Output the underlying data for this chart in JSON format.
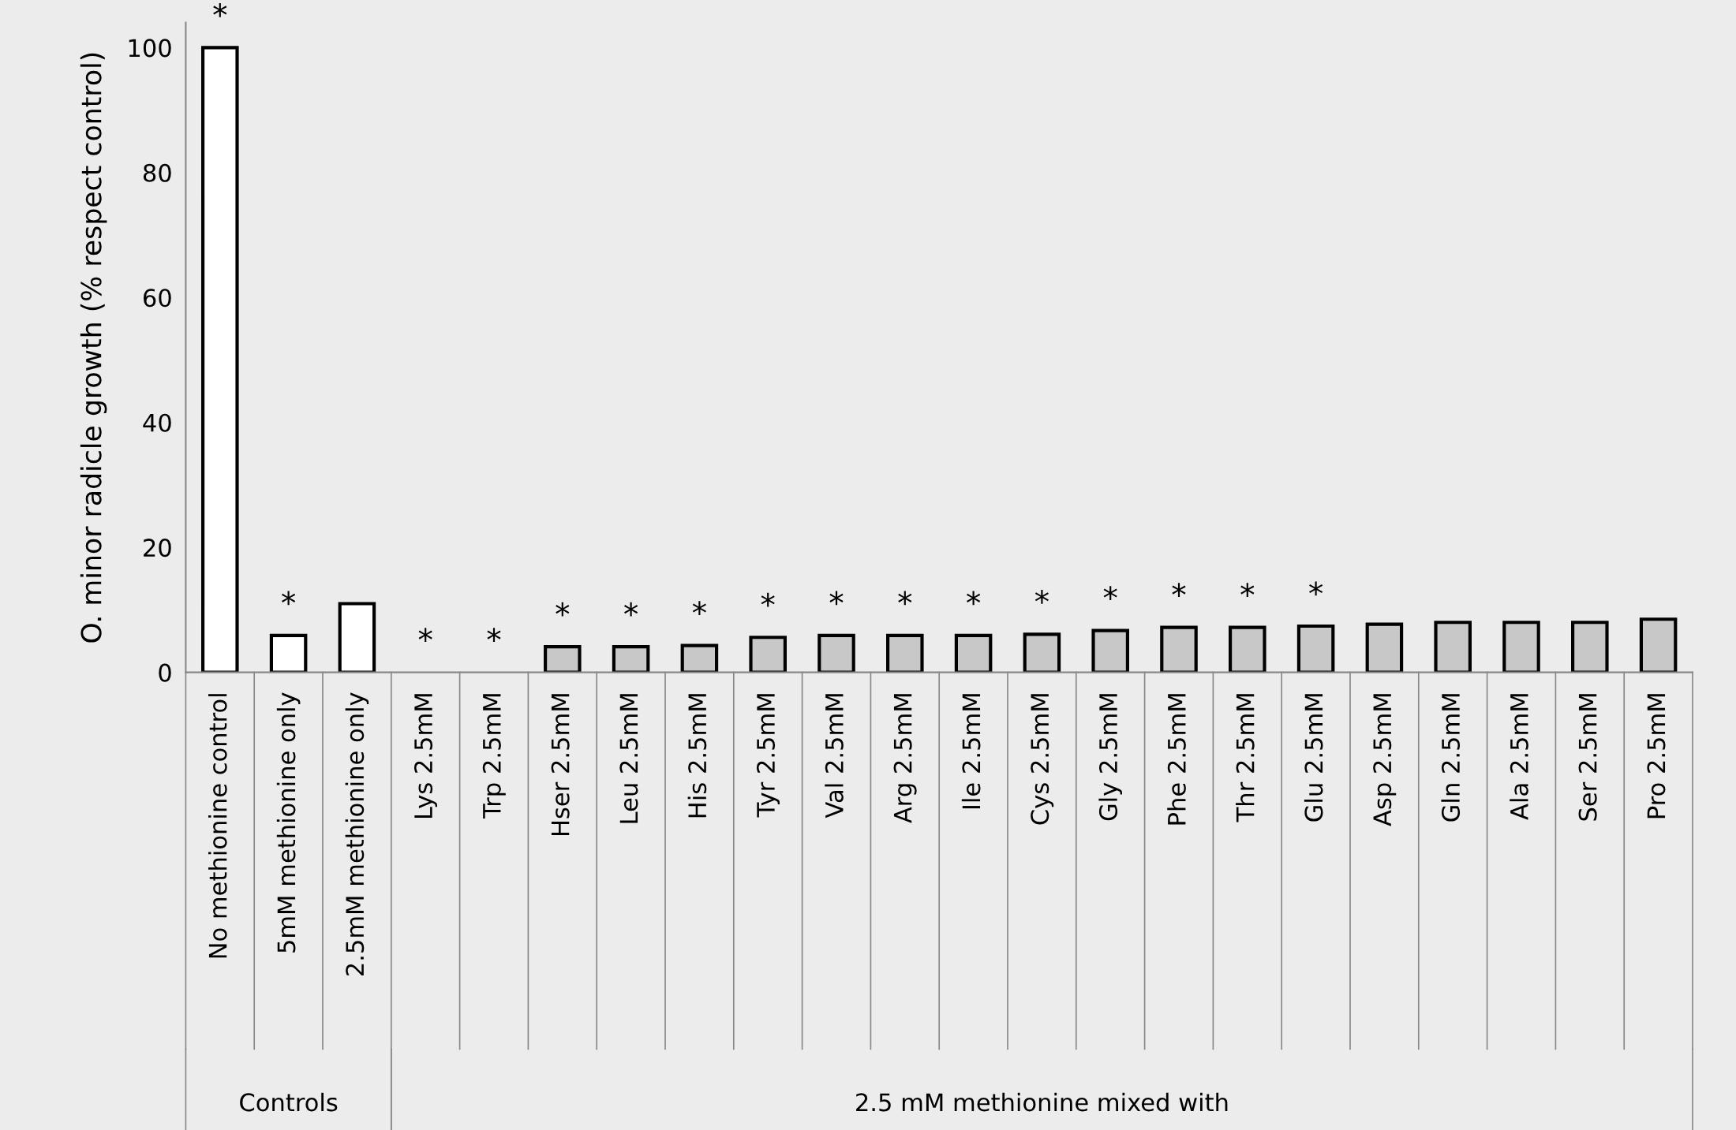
{
  "chart_data": {
    "type": "bar",
    "ylabel": "O. minor radicle growth (% respect control)",
    "categories": [
      "No methionine control",
      "5mM methionine only",
      "2.5mM methionine only",
      "Lys 2.5mM",
      "Trp 2.5mM",
      "Hser 2.5mM",
      "Leu 2.5mM",
      "His 2.5mM",
      "Tyr 2.5mM",
      "Val 2.5mM",
      "Arg 2.5mM",
      "Ile 2.5mM",
      "Cys 2.5mM",
      "Gly 2.5mM",
      "Phe 2.5mM",
      "Thr 2.5mM",
      "Glu 2.5mM",
      "Asp 2.5mM",
      "Gln 2.5mM",
      "Ala 2.5mM",
      "Ser 2.5mM",
      "Pro 2.5mM"
    ],
    "values": [
      100,
      5.9,
      11.0,
      0,
      0,
      4.1,
      4.1,
      4.3,
      5.6,
      5.9,
      5.9,
      5.9,
      6.1,
      6.7,
      7.2,
      7.2,
      7.4,
      7.7,
      8.0,
      8.0,
      8.0,
      8.5
    ],
    "colors": [
      "#ffffff",
      "#ffffff",
      "#ffffff",
      "#c8c8c8",
      "#c8c8c8",
      "#c8c8c8",
      "#c8c8c8",
      "#c8c8c8",
      "#c8c8c8",
      "#c8c8c8",
      "#c8c8c8",
      "#c8c8c8",
      "#c8c8c8",
      "#c8c8c8",
      "#c8c8c8",
      "#c8c8c8",
      "#c8c8c8",
      "#c8c8c8",
      "#c8c8c8",
      "#c8c8c8",
      "#c8c8c8",
      "#c8c8c8"
    ],
    "ylim": [
      0,
      104
    ],
    "yticks": [
      0,
      20,
      40,
      60,
      80,
      100
    ],
    "grid": false,
    "annotations": [
      {
        "text": "*",
        "x": "No methionine control",
        "y": 100
      },
      {
        "text": "*",
        "x": "5mM methionine only",
        "y": 5.9
      },
      {
        "text": "*",
        "x": "Lys 2.5mM",
        "y": 0
      },
      {
        "text": "*",
        "x": "Trp 2.5mM",
        "y": 0
      },
      {
        "text": "*",
        "x": "Hser 2.5mM",
        "y": 4.1
      },
      {
        "text": "*",
        "x": "Leu 2.5mM",
        "y": 4.1
      },
      {
        "text": "*",
        "x": "His 2.5mM",
        "y": 4.3
      },
      {
        "text": "*",
        "x": "Tyr 2.5mM",
        "y": 5.6
      },
      {
        "text": "*",
        "x": "Val 2.5mM",
        "y": 5.9
      },
      {
        "text": "*",
        "x": "Arg 2.5mM",
        "y": 5.9
      },
      {
        "text": "*",
        "x": "Ile 2.5mM",
        "y": 5.9
      },
      {
        "text": "*",
        "x": "Cys 2.5mM",
        "y": 6.1
      },
      {
        "text": "*",
        "x": "Gly 2.5mM",
        "y": 6.7
      },
      {
        "text": "*",
        "x": "Phe 2.5mM",
        "y": 7.2
      },
      {
        "text": "*",
        "x": "Thr 2.5mM",
        "y": 7.2
      },
      {
        "text": "*",
        "x": "Glu 2.5mM",
        "y": 7.4
      },
      "Controls",
      "2.5 mM methionine mixed with"
    ]
  }
}
